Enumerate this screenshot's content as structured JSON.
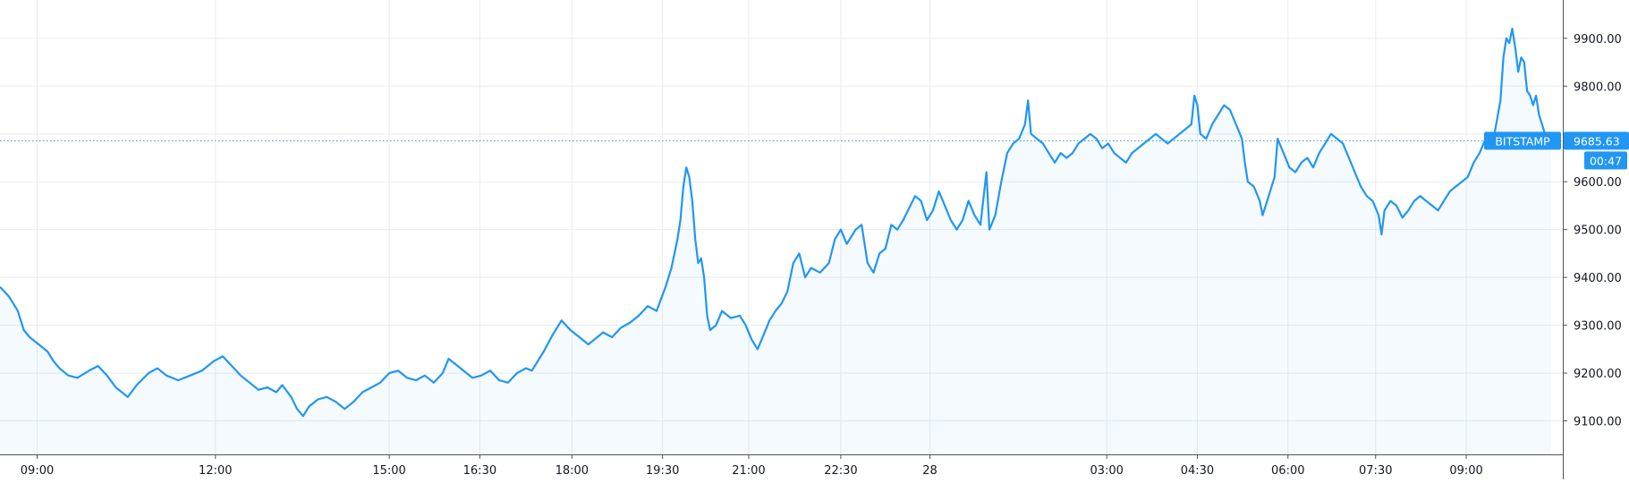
{
  "chart_data": {
    "type": "area",
    "title": "",
    "xlabel": "",
    "ylabel": "",
    "series": [
      {
        "values": [
          [
            0.0,
            9380
          ],
          [
            0.3,
            9360
          ],
          [
            0.6,
            9330
          ],
          [
            0.8,
            9290
          ],
          [
            1.0,
            9275
          ],
          [
            1.3,
            9260
          ],
          [
            1.6,
            9245
          ],
          [
            1.8,
            9225
          ],
          [
            2.0,
            9210
          ],
          [
            2.3,
            9195
          ],
          [
            2.6,
            9190
          ],
          [
            3.0,
            9205
          ],
          [
            3.3,
            9215
          ],
          [
            3.6,
            9195
          ],
          [
            3.9,
            9170
          ],
          [
            4.1,
            9160
          ],
          [
            4.3,
            9150
          ],
          [
            4.6,
            9175
          ],
          [
            5.0,
            9200
          ],
          [
            5.3,
            9210
          ],
          [
            5.6,
            9195
          ],
          [
            6.0,
            9185
          ],
          [
            6.4,
            9195
          ],
          [
            6.8,
            9205
          ],
          [
            7.2,
            9225
          ],
          [
            7.5,
            9235
          ],
          [
            7.8,
            9215
          ],
          [
            8.1,
            9195
          ],
          [
            8.4,
            9180
          ],
          [
            8.7,
            9165
          ],
          [
            9.0,
            9170
          ],
          [
            9.3,
            9160
          ],
          [
            9.5,
            9175
          ],
          [
            9.8,
            9150
          ],
          [
            10.0,
            9125
          ],
          [
            10.2,
            9110
          ],
          [
            10.4,
            9130
          ],
          [
            10.7,
            9145
          ],
          [
            11.0,
            9150
          ],
          [
            11.3,
            9140
          ],
          [
            11.6,
            9125
          ],
          [
            11.9,
            9140
          ],
          [
            12.2,
            9160
          ],
          [
            12.5,
            9170
          ],
          [
            12.8,
            9180
          ],
          [
            13.1,
            9200
          ],
          [
            13.4,
            9205
          ],
          [
            13.7,
            9190
          ],
          [
            14.0,
            9185
          ],
          [
            14.3,
            9195
          ],
          [
            14.6,
            9180
          ],
          [
            14.9,
            9200
          ],
          [
            15.1,
            9230
          ],
          [
            15.3,
            9220
          ],
          [
            15.6,
            9205
          ],
          [
            15.9,
            9190
          ],
          [
            16.2,
            9195
          ],
          [
            16.5,
            9205
          ],
          [
            16.8,
            9185
          ],
          [
            17.1,
            9180
          ],
          [
            17.4,
            9200
          ],
          [
            17.7,
            9210
          ],
          [
            17.9,
            9205
          ],
          [
            18.1,
            9225
          ],
          [
            18.3,
            9245
          ],
          [
            18.6,
            9280
          ],
          [
            18.9,
            9310
          ],
          [
            19.2,
            9290
          ],
          [
            19.5,
            9275
          ],
          [
            19.8,
            9260
          ],
          [
            20.0,
            9270
          ],
          [
            20.3,
            9285
          ],
          [
            20.6,
            9275
          ],
          [
            20.9,
            9295
          ],
          [
            21.2,
            9305
          ],
          [
            21.5,
            9320
          ],
          [
            21.8,
            9340
          ],
          [
            22.1,
            9330
          ],
          [
            22.4,
            9380
          ],
          [
            22.6,
            9420
          ],
          [
            22.8,
            9480
          ],
          [
            22.9,
            9520
          ],
          [
            23.0,
            9590
          ],
          [
            23.1,
            9630
          ],
          [
            23.2,
            9610
          ],
          [
            23.3,
            9560
          ],
          [
            23.4,
            9480
          ],
          [
            23.5,
            9430
          ],
          [
            23.6,
            9440
          ],
          [
            23.7,
            9400
          ],
          [
            23.8,
            9320
          ],
          [
            23.9,
            9290
          ],
          [
            24.1,
            9300
          ],
          [
            24.3,
            9330
          ],
          [
            24.6,
            9315
          ],
          [
            24.9,
            9320
          ],
          [
            25.1,
            9300
          ],
          [
            25.3,
            9270
          ],
          [
            25.5,
            9250
          ],
          [
            25.7,
            9280
          ],
          [
            25.9,
            9310
          ],
          [
            26.1,
            9330
          ],
          [
            26.3,
            9345
          ],
          [
            26.5,
            9370
          ],
          [
            26.7,
            9430
          ],
          [
            26.9,
            9450
          ],
          [
            27.1,
            9400
          ],
          [
            27.3,
            9420
          ],
          [
            27.6,
            9410
          ],
          [
            27.9,
            9430
          ],
          [
            28.1,
            9480
          ],
          [
            28.3,
            9500
          ],
          [
            28.5,
            9470
          ],
          [
            28.8,
            9500
          ],
          [
            29.0,
            9510
          ],
          [
            29.2,
            9430
          ],
          [
            29.4,
            9410
          ],
          [
            29.6,
            9450
          ],
          [
            29.8,
            9460
          ],
          [
            30.0,
            9510
          ],
          [
            30.2,
            9500
          ],
          [
            30.4,
            9520
          ],
          [
            30.6,
            9545
          ],
          [
            30.8,
            9570
          ],
          [
            31.0,
            9560
          ],
          [
            31.2,
            9520
          ],
          [
            31.4,
            9540
          ],
          [
            31.6,
            9580
          ],
          [
            31.8,
            9550
          ],
          [
            32.0,
            9520
          ],
          [
            32.2,
            9500
          ],
          [
            32.4,
            9520
          ],
          [
            32.6,
            9560
          ],
          [
            32.8,
            9530
          ],
          [
            33.0,
            9510
          ],
          [
            33.2,
            9620
          ],
          [
            33.3,
            9500
          ],
          [
            33.5,
            9530
          ],
          [
            33.7,
            9600
          ],
          [
            33.9,
            9660
          ],
          [
            34.1,
            9680
          ],
          [
            34.3,
            9690
          ],
          [
            34.5,
            9720
          ],
          [
            34.6,
            9770
          ],
          [
            34.7,
            9700
          ],
          [
            34.9,
            9690
          ],
          [
            35.1,
            9680
          ],
          [
            35.3,
            9660
          ],
          [
            35.5,
            9640
          ],
          [
            35.7,
            9660
          ],
          [
            35.9,
            9650
          ],
          [
            36.1,
            9660
          ],
          [
            36.3,
            9680
          ],
          [
            36.5,
            9690
          ],
          [
            36.7,
            9700
          ],
          [
            36.9,
            9690
          ],
          [
            37.1,
            9670
          ],
          [
            37.3,
            9680
          ],
          [
            37.5,
            9660
          ],
          [
            37.7,
            9650
          ],
          [
            37.9,
            9640
          ],
          [
            38.1,
            9660
          ],
          [
            38.3,
            9670
          ],
          [
            38.5,
            9680
          ],
          [
            38.7,
            9690
          ],
          [
            38.9,
            9700
          ],
          [
            39.1,
            9690
          ],
          [
            39.3,
            9680
          ],
          [
            39.5,
            9690
          ],
          [
            39.7,
            9700
          ],
          [
            39.9,
            9710
          ],
          [
            40.1,
            9720
          ],
          [
            40.2,
            9780
          ],
          [
            40.3,
            9760
          ],
          [
            40.4,
            9700
          ],
          [
            40.6,
            9690
          ],
          [
            40.8,
            9720
          ],
          [
            41.0,
            9740
          ],
          [
            41.2,
            9760
          ],
          [
            41.4,
            9750
          ],
          [
            41.6,
            9720
          ],
          [
            41.8,
            9690
          ],
          [
            41.9,
            9640
          ],
          [
            42.0,
            9600
          ],
          [
            42.2,
            9590
          ],
          [
            42.4,
            9560
          ],
          [
            42.5,
            9530
          ],
          [
            42.7,
            9570
          ],
          [
            42.9,
            9610
          ],
          [
            43.0,
            9690
          ],
          [
            43.2,
            9660
          ],
          [
            43.4,
            9630
          ],
          [
            43.6,
            9620
          ],
          [
            43.8,
            9640
          ],
          [
            44.0,
            9650
          ],
          [
            44.2,
            9630
          ],
          [
            44.4,
            9660
          ],
          [
            44.6,
            9680
          ],
          [
            44.8,
            9700
          ],
          [
            45.0,
            9690
          ],
          [
            45.2,
            9680
          ],
          [
            45.4,
            9650
          ],
          [
            45.6,
            9620
          ],
          [
            45.8,
            9590
          ],
          [
            46.0,
            9570
          ],
          [
            46.2,
            9560
          ],
          [
            46.4,
            9530
          ],
          [
            46.5,
            9490
          ],
          [
            46.6,
            9540
          ],
          [
            46.8,
            9560
          ],
          [
            47.0,
            9550
          ],
          [
            47.2,
            9525
          ],
          [
            47.4,
            9540
          ],
          [
            47.6,
            9560
          ],
          [
            47.8,
            9570
          ],
          [
            48.0,
            9560
          ],
          [
            48.2,
            9550
          ],
          [
            48.4,
            9540
          ],
          [
            48.6,
            9560
          ],
          [
            48.8,
            9580
          ],
          [
            49.0,
            9590
          ],
          [
            49.2,
            9600
          ],
          [
            49.4,
            9610
          ],
          [
            49.6,
            9640
          ],
          [
            49.8,
            9660
          ],
          [
            50.0,
            9690
          ],
          [
            50.2,
            9670
          ],
          [
            50.3,
            9700
          ],
          [
            50.5,
            9770
          ],
          [
            50.6,
            9860
          ],
          [
            50.7,
            9900
          ],
          [
            50.8,
            9890
          ],
          [
            50.9,
            9920
          ],
          [
            51.0,
            9880
          ],
          [
            51.1,
            9830
          ],
          [
            51.2,
            9860
          ],
          [
            51.3,
            9850
          ],
          [
            51.4,
            9790
          ],
          [
            51.5,
            9780
          ],
          [
            51.6,
            9760
          ],
          [
            51.7,
            9780
          ],
          [
            51.8,
            9740
          ],
          [
            51.9,
            9720
          ],
          [
            52.0,
            9700
          ],
          [
            52.1,
            9690
          ],
          [
            52.2,
            9685.63
          ]
        ]
      }
    ],
    "x_ticks": [
      {
        "label": "09:00",
        "hour": 1.25
      },
      {
        "label": "12:00",
        "hour": 7.25
      },
      {
        "label": "15:00",
        "hour": 13.1
      },
      {
        "label": "16:30",
        "hour": 16.15
      },
      {
        "label": "18:00",
        "hour": 19.25
      },
      {
        "label": "19:30",
        "hour": 22.3
      },
      {
        "label": "21:00",
        "hour": 25.2
      },
      {
        "label": "22:30",
        "hour": 28.3
      },
      {
        "label": "28",
        "hour": 31.3
      },
      {
        "label": "03:00",
        "hour": 37.25
      },
      {
        "label": "04:30",
        "hour": 40.3
      },
      {
        "label": "06:00",
        "hour": 43.35
      },
      {
        "label": "07:30",
        "hour": 46.3
      },
      {
        "label": "09:00",
        "hour": 49.35
      }
    ],
    "y_ticks": [
      9100,
      9200,
      9300,
      9400,
      9500,
      9600,
      9700,
      9800,
      9900
    ],
    "y_tick_labels": [
      "9100.00",
      "9200.00",
      "9300.00",
      "9400.00",
      "9500.00",
      "9600.00",
      "",
      "9800.00",
      "9900.00"
    ],
    "ylim": [
      9030,
      9980
    ],
    "xlim": [
      0,
      52.6
    ],
    "grid": true,
    "current_price": {
      "value": 9685.63,
      "exchange_label": "BITSTAMP",
      "price_label": "9685.63",
      "countdown": "00:47"
    },
    "colors": {
      "line": "#2196f3",
      "fill": "#2196f3",
      "grid": "#e9ecf2",
      "axis_text": "#131722",
      "badge": "#2196f3",
      "price_line": "#2196f3"
    }
  }
}
